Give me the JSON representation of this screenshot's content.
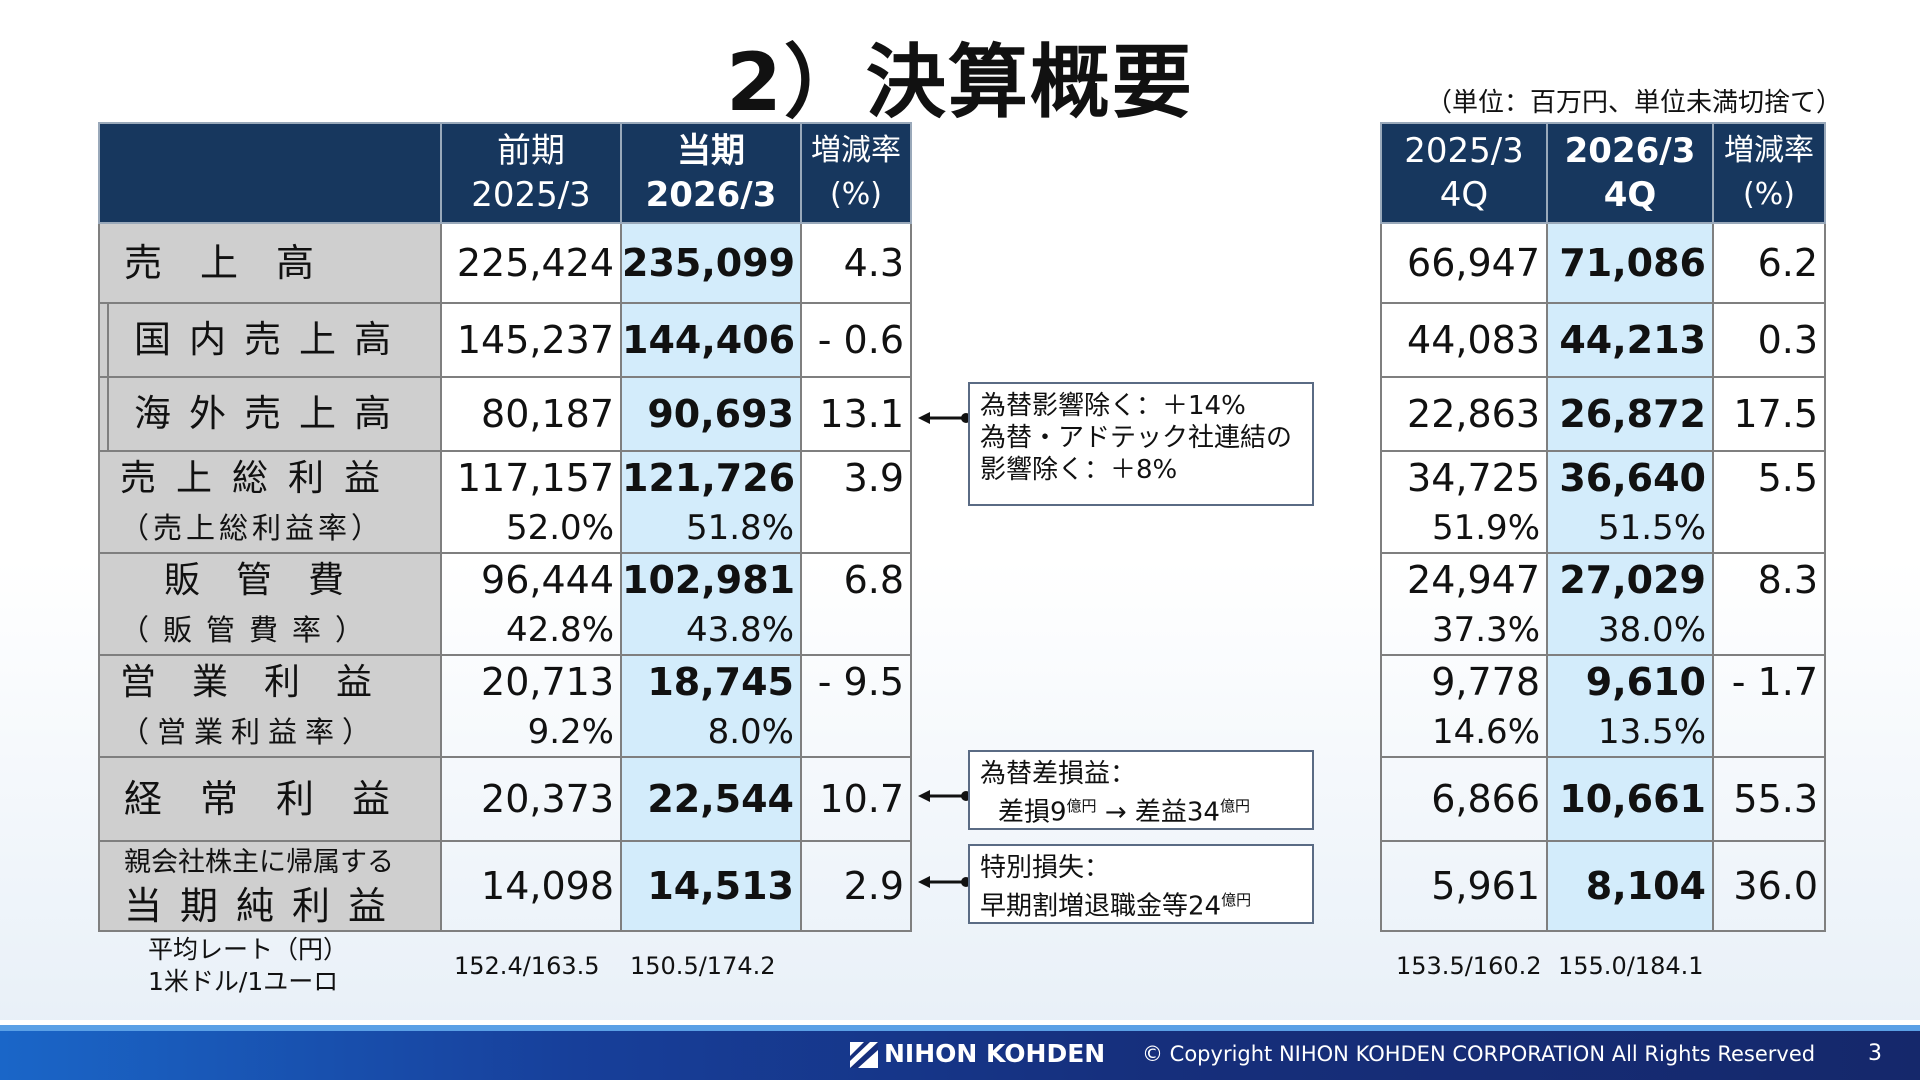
{
  "title": "2）決算概要",
  "unit_note": "（単位：百万円、単位未満切捨て）",
  "left_table": {
    "headers": [
      {
        "top": "前期",
        "bottom": "2025/3"
      },
      {
        "top": "当期",
        "bottom": "2026/3"
      },
      {
        "top": "増減率",
        "bottom": "(%)"
      }
    ],
    "rows": [
      {
        "label": "売　上　高",
        "prev": "225,424",
        "cur": "235,099",
        "chg": "4.3"
      },
      {
        "label": "国内売上高",
        "prev": "145,237",
        "cur": "144,406",
        "chg": "- 0.6"
      },
      {
        "label": "海外売上高",
        "prev": "80,187",
        "cur": "90,693",
        "chg": "13.1"
      },
      {
        "label": "売上総利益",
        "sub_label": "（売上総利益率）",
        "prev": "117,157",
        "prev2": "52.0%",
        "cur": "121,726",
        "cur2": "51.8%",
        "chg": "3.9"
      },
      {
        "label": "販　管　費",
        "sub_label": "（販管費率）",
        "prev": "96,444",
        "prev2": "42.8%",
        "cur": "102,981",
        "cur2": "43.8%",
        "chg": "6.8"
      },
      {
        "label": "営業利益",
        "sub_label": "（営業利益率）",
        "prev": "20,713",
        "prev2": "9.2%",
        "cur": "18,745",
        "cur2": "8.0%",
        "chg": "- 9.5"
      },
      {
        "label": "経　常　利　益",
        "prev": "20,373",
        "cur": "22,544",
        "chg": "10.7"
      },
      {
        "label_small": "親会社株主に帰属する",
        "label": "当期純利益",
        "prev": "14,098",
        "cur": "14,513",
        "chg": "2.9"
      }
    ]
  },
  "right_table": {
    "headers": [
      {
        "top": "2025/3",
        "bottom": "4Q"
      },
      {
        "top": "2026/3",
        "bottom": "4Q"
      },
      {
        "top": "増減率",
        "bottom": "(%)"
      }
    ],
    "rows": [
      {
        "prev": "66,947",
        "cur": "71,086",
        "chg": "6.2"
      },
      {
        "prev": "44,083",
        "cur": "44,213",
        "chg": "0.3"
      },
      {
        "prev": "22,863",
        "cur": "26,872",
        "chg": "17.5"
      },
      {
        "prev": "34,725",
        "prev2": "51.9%",
        "cur": "36,640",
        "cur2": "51.5%",
        "chg": "5.5"
      },
      {
        "prev": "24,947",
        "prev2": "37.3%",
        "cur": "27,029",
        "cur2": "38.0%",
        "chg": "8.3"
      },
      {
        "prev": "9,778",
        "prev2": "14.6%",
        "cur": "9,610",
        "cur2": "13.5%",
        "chg": "- 1.7"
      },
      {
        "prev": "6,866",
        "cur": "10,661",
        "chg": "55.3"
      },
      {
        "prev": "5,961",
        "cur": "8,104",
        "chg": "36.0"
      }
    ]
  },
  "notes": {
    "overseas": {
      "line1": "為替影響除く：＋14%",
      "line2": "為替・アドテック社連結の",
      "line3": "影響除く：＋8%"
    },
    "ordinary": {
      "line1": "為替差損益：",
      "line2_a": "差損9",
      "line2_unit_a": "億円",
      "line2_b": " → 差益34",
      "line2_unit_b": "億円"
    },
    "net": {
      "line1": "特別損失：",
      "line2": "早期割増退職金等24",
      "line2_unit": "億円"
    }
  },
  "fx": {
    "label_line1": "平均レート（円）",
    "label_line2": "1米ドル/1ユーロ",
    "prev": "152.4/163.5",
    "cur": "150.5/174.2",
    "prev_4q": "153.5/160.2",
    "cur_4q": "155.0/184.1"
  },
  "footer": {
    "logo_text": "NIHON KOHDEN",
    "copyright": "© Copyright  NIHON KOHDEN CORPORATION  All Rights Reserved",
    "page": "3"
  }
}
